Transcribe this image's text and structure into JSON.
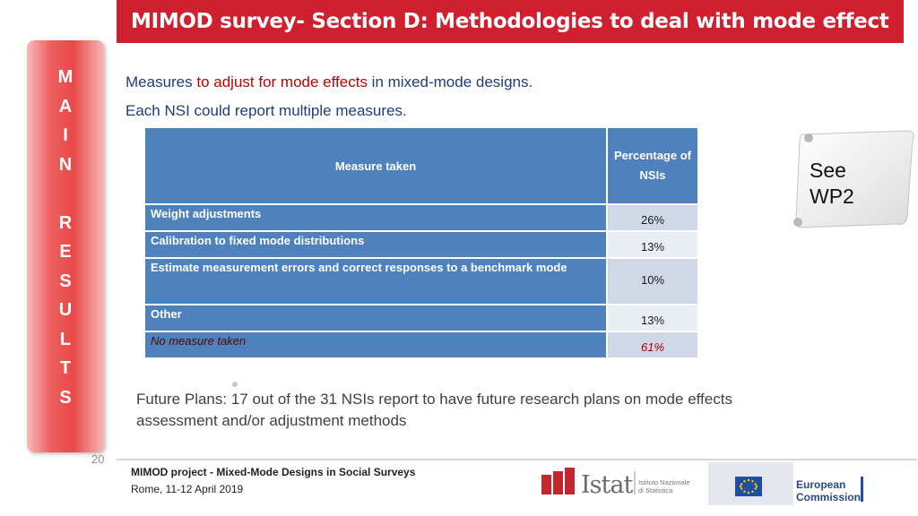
{
  "header": {
    "title": "MIMOD survey- Section D: Methodologies to deal with mode effect"
  },
  "sidebar": {
    "letters": [
      "M",
      "A",
      "I",
      "N",
      "",
      "R",
      "E",
      "S",
      "U",
      "L",
      "T",
      "S"
    ]
  },
  "intro": {
    "line1_part1": "Measures ",
    "line1_part2": "to adjust for mode effects",
    "line1_part3": " in mixed-mode designs.",
    "line2": "Each NSI could report multiple measures."
  },
  "table": {
    "headers": [
      "Measure taken",
      "Percentage of NSIs"
    ],
    "rows": [
      {
        "measure": "Weight adjustments",
        "percentage": "26%"
      },
      {
        "measure": "Calibration to fixed mode distributions",
        "percentage": "13%"
      },
      {
        "measure": "Estimate measurement errors and correct responses to a benchmark mode",
        "percentage": "10%"
      },
      {
        "measure": "Other",
        "percentage": "13%"
      },
      {
        "measure": "No measure taken",
        "percentage": "61%"
      }
    ]
  },
  "future_plans": "Future Plans:  17 out of the 31 NSIs report to have future research plans on mode effects assessment and/or adjustment methods",
  "note": {
    "line1": "See",
    "line2": "WP2"
  },
  "footer": {
    "page_number": "20",
    "project": "MIMOD project - Mixed-Mode Designs in Social Surveys",
    "location_date": "Rome, 11-12 April 2019",
    "istat_name": "Istat",
    "istat_sub1": "Istituto Nazionale",
    "istat_sub2": "di Statistica",
    "ec_line1": "European",
    "ec_line2": "Commission"
  },
  "colors": {
    "title_bar": "#d02030",
    "table_header": "#4f81bd",
    "intro_text": "#1f3d7a",
    "accent_red": "#c00000"
  }
}
